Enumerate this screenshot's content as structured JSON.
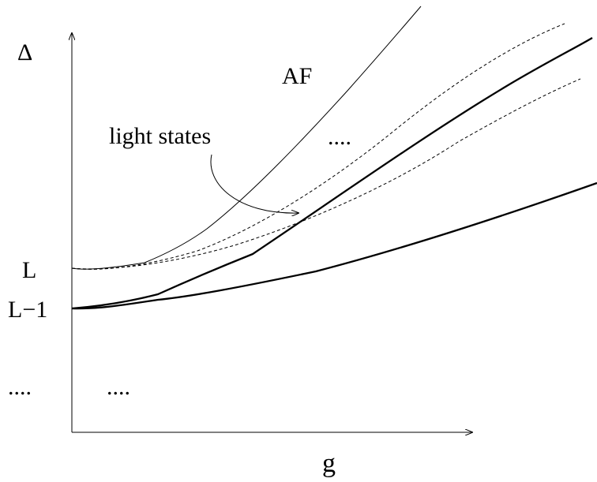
{
  "axes": {
    "y_label": "Δ",
    "x_label": "g"
  },
  "y_ticks": {
    "top": "L",
    "bottom": "L−1"
  },
  "annotations": {
    "af": "AF",
    "light_states": "light states",
    "dots_upper": "....",
    "dots_left": "....",
    "dots_lower": "...."
  },
  "colors": {
    "ink": "#000000",
    "background": "#ffffff"
  }
}
